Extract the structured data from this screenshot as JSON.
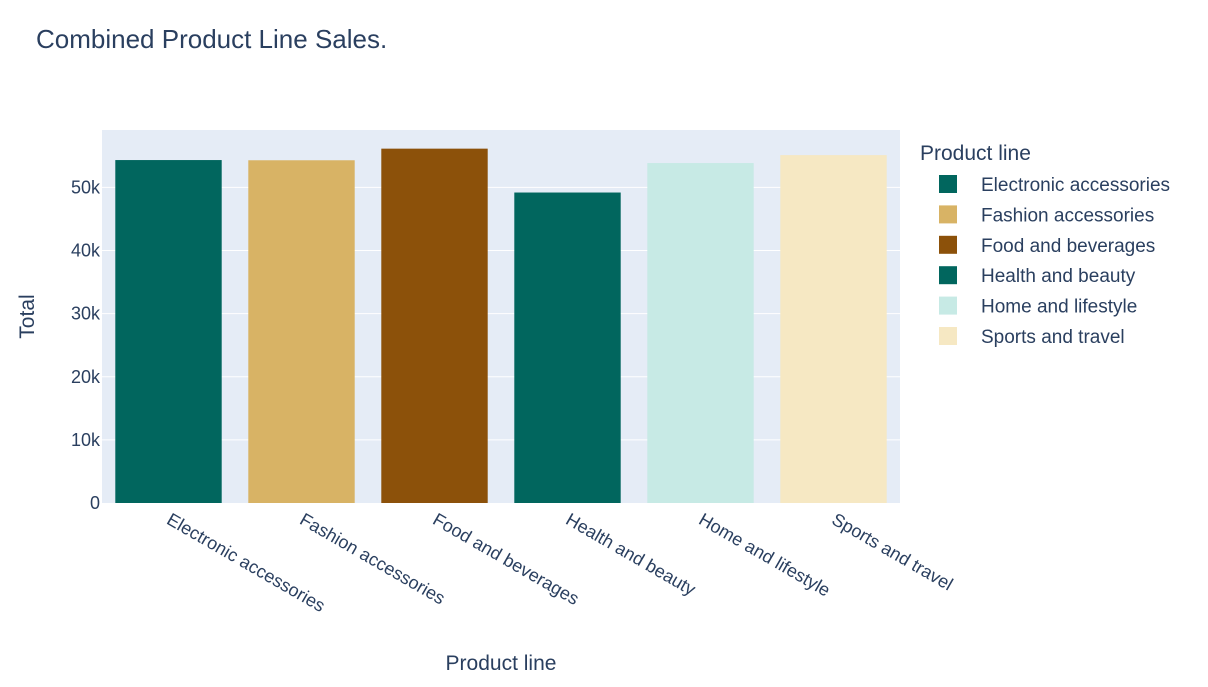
{
  "chart_data": {
    "type": "bar",
    "title": "Combined Product Line Sales.",
    "xlabel": "Product line",
    "ylabel": "Total",
    "categories": [
      "Electronic accessories",
      "Fashion accessories",
      "Food and beverages",
      "Health and beauty",
      "Home and lifestyle",
      "Sports and travel"
    ],
    "values": [
      54337.53,
      54305.9,
      56144.84,
      49193.74,
      53861.91,
      55122.83
    ],
    "colors": [
      "#01665e",
      "#d8b365",
      "#8c510a",
      "#01665e",
      "#c7eae5",
      "#f6e8c3"
    ],
    "ylim": [
      0,
      59100
    ],
    "yticks": [
      0,
      10000,
      20000,
      30000,
      40000,
      50000
    ],
    "ytick_labels": [
      "0",
      "10k",
      "20k",
      "30k",
      "40k",
      "50k"
    ],
    "legend": {
      "title": "Product line",
      "position": "right",
      "entries": [
        "Electronic accessories",
        "Fashion accessories",
        "Food and beverages",
        "Health and beauty",
        "Home and lifestyle",
        "Sports and travel"
      ]
    },
    "grid": true,
    "plot_background": "#e5ecf6"
  }
}
